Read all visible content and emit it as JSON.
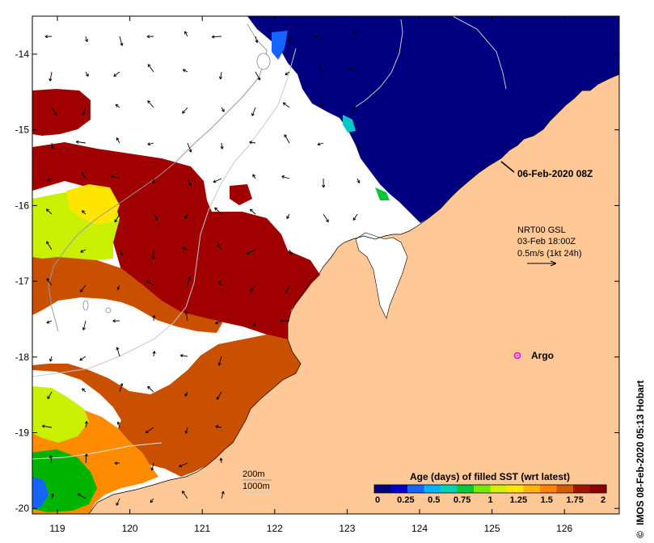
{
  "map": {
    "latitude_labels": [
      "-14",
      "-15",
      "-16",
      "-17",
      "-18",
      "-19",
      "-20"
    ],
    "longitude_labels": [
      "119",
      "120",
      "121",
      "122",
      "123",
      "124",
      "125",
      "126"
    ],
    "date_label": "06-Feb-2020 08Z",
    "current_box": {
      "line1": "NRT00 GSL",
      "line2": "03-Feb 18:00Z",
      "line3": "0.5m/s (1kt 24h)"
    },
    "argo_label": "Argo",
    "depth_legend": {
      "shallow": "200m",
      "deep": "1000m"
    },
    "colorbar": {
      "title": "Age (days) of filled SST (wrt latest)",
      "tick_labels": [
        "0",
        "0.25",
        "0.5",
        "0.75",
        "1",
        "1.25",
        "1.5",
        "1.75",
        "2"
      ],
      "colors": [
        "#00007a",
        "#0000c8",
        "#1464ff",
        "#00b4ff",
        "#00d2b4",
        "#00c83c",
        "#78e600",
        "#d2f000",
        "#ffe600",
        "#ffb400",
        "#ff8200",
        "#d25a00",
        "#a01400",
        "#8c0000"
      ]
    },
    "side_label": "IMOS 08-Feb-2020 05:13 Hobart",
    "copyright_symbol": "©",
    "colors": {
      "land": "#ffc896",
      "fresh_sst": "#000080",
      "old_sst": "#a00000",
      "argo": "#e600e6"
    }
  }
}
